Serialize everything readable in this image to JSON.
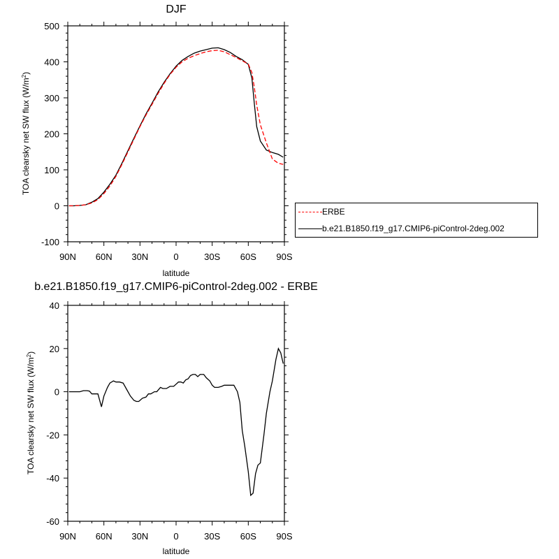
{
  "charts": [
    {
      "title": "DJF",
      "xlabel": "latitude",
      "ylabel_prefix": "TOA clearsky net SW flux (W/m",
      "ylabel_sup": "2",
      "ylabel_suffix": ")",
      "yticks": [
        "-100",
        "0",
        "100",
        "200",
        "300",
        "400",
        "500"
      ],
      "xticks": [
        "90N",
        "60N",
        "30N",
        "0",
        "30S",
        "60S",
        "90S"
      ]
    },
    {
      "title": "b.e21.B1850.f19_g17.CMIP6-piControl-2deg.002 - ERBE",
      "xlabel": "latitude",
      "ylabel_prefix": "TOA clearsky net SW flux (W/m",
      "ylabel_sup": "2",
      "ylabel_suffix": ")",
      "yticks": [
        "-60",
        "-40",
        "-20",
        "0",
        "20",
        "40"
      ],
      "xticks": [
        "90N",
        "60N",
        "30N",
        "0",
        "30S",
        "60S",
        "90S"
      ]
    }
  ],
  "legend": {
    "entries": [
      {
        "label": "ERBE",
        "color": "#ff0000",
        "dash": "dashed"
      },
      {
        "label": "b.e21.B1850.f19_g17.CMIP6-piControl-2deg.002",
        "color": "#000000",
        "dash": "solid"
      }
    ]
  },
  "chart_data": [
    {
      "type": "line",
      "title": "DJF",
      "xlabel": "latitude",
      "ylabel": "TOA clearsky net SW flux (W/m2)",
      "xlim": [
        90,
        -90
      ],
      "ylim": [
        -100,
        500
      ],
      "series": [
        {
          "name": "ERBE",
          "color": "#ff0000",
          "style": "dashed",
          "x": [
            89,
            85,
            80,
            75,
            70,
            65,
            60,
            55,
            50,
            45,
            40,
            35,
            30,
            25,
            20,
            15,
            10,
            5,
            0,
            -5,
            -10,
            -15,
            -20,
            -25,
            -30,
            -35,
            -40,
            -45,
            -50,
            -55,
            -60,
            -63,
            -65,
            -67,
            -70,
            -75,
            -80,
            -85,
            -89
          ],
          "y": [
            0,
            0,
            1,
            3,
            8,
            17,
            34,
            55,
            82,
            115,
            150,
            185,
            220,
            252,
            282,
            312,
            340,
            365,
            385,
            400,
            410,
            417,
            423,
            428,
            431,
            432,
            428,
            420,
            412,
            403,
            394,
            370,
            330,
            280,
            225,
            175,
            130,
            118,
            115
          ]
        },
        {
          "name": "b.e21.B1850.f19_g17.CMIP6-piControl-2deg.002",
          "color": "#000000",
          "style": "solid",
          "x": [
            89,
            85,
            80,
            75,
            70,
            65,
            60,
            55,
            50,
            45,
            40,
            35,
            30,
            25,
            20,
            15,
            10,
            5,
            0,
            -5,
            -10,
            -15,
            -20,
            -25,
            -30,
            -35,
            -40,
            -45,
            -50,
            -55,
            -60,
            -63,
            -65,
            -67,
            -70,
            -75,
            -80,
            -85,
            -89
          ],
          "y": [
            0,
            0,
            1,
            3,
            10,
            20,
            38,
            60,
            85,
            118,
            153,
            188,
            222,
            255,
            285,
            316,
            343,
            367,
            388,
            404,
            415,
            424,
            430,
            434,
            438,
            439,
            434,
            426,
            415,
            406,
            393,
            355,
            285,
            220,
            180,
            155,
            148,
            143,
            135
          ]
        }
      ]
    },
    {
      "type": "line",
      "title": "b.e21.B1850.f19_g17.CMIP6-piControl-2deg.002 - ERBE",
      "xlabel": "latitude",
      "ylabel": "TOA clearsky net SW flux (W/m2)",
      "xlim": [
        90,
        -90
      ],
      "ylim": [
        -60,
        40
      ],
      "series": [
        {
          "name": "b.e21.B1850.f19_g17.CMIP6-piControl-2deg.002 - ERBE",
          "color": "#000000",
          "style": "solid",
          "x": [
            89,
            85,
            82,
            80,
            77,
            74,
            72,
            70,
            68,
            65,
            62,
            60,
            57,
            55,
            52,
            50,
            47,
            44,
            41,
            38,
            35,
            33,
            31,
            28,
            25,
            23,
            21,
            18,
            16,
            13,
            11,
            8,
            5,
            2,
            0,
            -2,
            -4,
            -6,
            -8,
            -10,
            -12,
            -14,
            -16,
            -18,
            -20,
            -23,
            -25,
            -28,
            -30,
            -32,
            -35,
            -38,
            -40,
            -43,
            -46,
            -48,
            -51,
            -53,
            -55,
            -57,
            -60,
            -62,
            -64,
            -66,
            -68,
            -70,
            -73,
            -75,
            -78,
            -80,
            -83,
            -85,
            -87,
            -89
          ],
          "y": [
            0,
            0,
            0,
            0,
            0.5,
            0.5,
            0.3,
            -1,
            -1,
            -1,
            -7,
            -2,
            2,
            4,
            5,
            4.5,
            4.5,
            4,
            1,
            -2,
            -4,
            -4.5,
            -4.5,
            -3,
            -2.5,
            -1,
            -1,
            0,
            0,
            2,
            1.5,
            1.5,
            2.5,
            2.5,
            3.5,
            4.5,
            4.5,
            4,
            5.5,
            6,
            7.5,
            8,
            8,
            7,
            8,
            8,
            6.5,
            5,
            3,
            2,
            2,
            2.5,
            3,
            3,
            3,
            3,
            0,
            -5,
            -18,
            -25,
            -37,
            -48,
            -47,
            -38,
            -34,
            -33,
            -20,
            -10,
            0,
            5,
            15,
            20,
            18,
            13
          ]
        }
      ]
    }
  ]
}
